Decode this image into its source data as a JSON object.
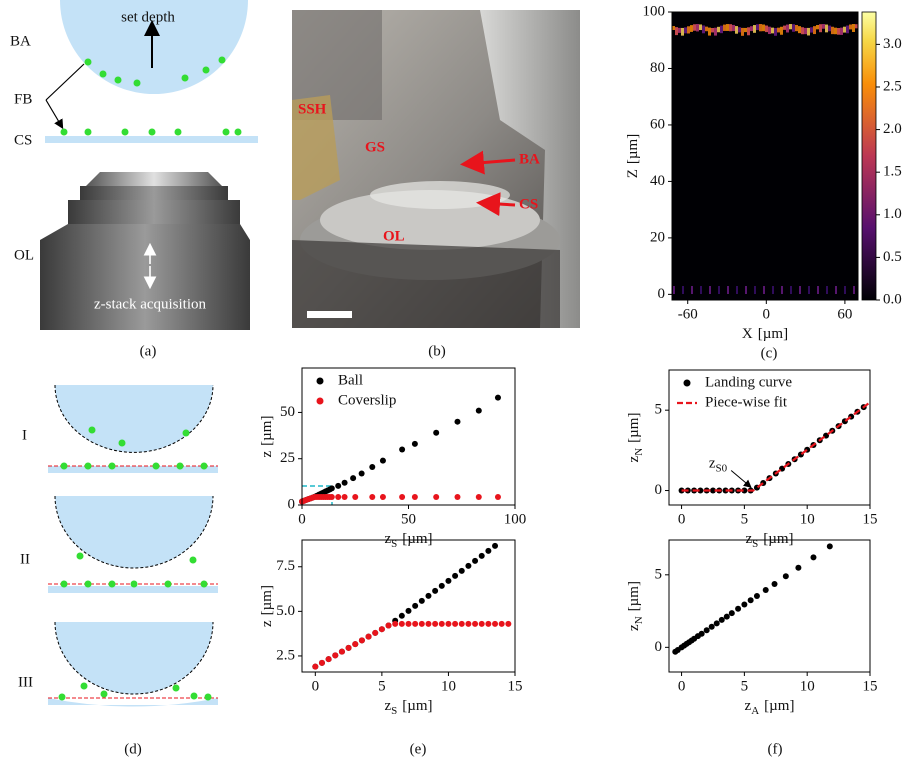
{
  "panel_labels": [
    "(a)",
    "(b)",
    "(c)",
    "(d)",
    "(e)",
    "(f)"
  ],
  "diagram_a": {
    "ba": "BA",
    "fb": "FB",
    "cs": "CS",
    "ol": "OL",
    "set_depth": "set depth",
    "z_stack": "z-stack acquisition"
  },
  "photo_b": {
    "ssh": "SSH",
    "gs": "GS",
    "ba": "BA",
    "cs": "CS",
    "ol": "OL"
  },
  "diagram_d": {
    "stages": [
      "I",
      "II",
      "III"
    ]
  },
  "chart_data": [
    {
      "type": "heatmap",
      "xlabel": {
        "text": "X",
        "unit": "[µm]"
      },
      "ylabel": {
        "text": "Z",
        "unit": "[µm]"
      },
      "xlim": [
        -72,
        70
      ],
      "ylim": [
        -2,
        100
      ],
      "xticks": [
        -60,
        0,
        60
      ],
      "yticks": [
        0,
        20,
        40,
        60,
        80,
        100
      ],
      "colorbar": {
        "clim": [
          0,
          3.38
        ],
        "ticks": [
          {
            "value": 0,
            "label": "0.0"
          },
          0.5,
          {
            "value": 1,
            "label": "1.0"
          },
          1.5,
          {
            "value": 2,
            "label": "2.0"
          },
          2.5,
          {
            "value": 3,
            "label": "3.0"
          }
        ]
      }
    },
    {
      "type": "scatter",
      "xlabel": {
        "text": "z",
        "sub": "S",
        "unit": "[µm]"
      },
      "ylabel": {
        "text": "z",
        "unit": "[µm]"
      },
      "xlim": [
        0,
        100
      ],
      "ylim": [
        0,
        74
      ],
      "xticks": [
        0,
        50,
        100
      ],
      "yticks": [
        0,
        25,
        50
      ],
      "legend": "upper left",
      "series": [
        {
          "name": "Ball",
          "color": "#000000",
          "style": "markers",
          "x": [
            0,
            1,
            2,
            3,
            4,
            5,
            6,
            7,
            8,
            9,
            10,
            11,
            12,
            13,
            14,
            17,
            20,
            24,
            28,
            33,
            38,
            47,
            53,
            63,
            73,
            83,
            92
          ],
          "values": [
            1.9,
            2.32,
            2.74,
            3.16,
            3.58,
            4.0,
            4.47,
            5.03,
            5.59,
            6.15,
            6.71,
            7.27,
            7.83,
            8.39,
            9.0,
            10.3,
            12,
            14.5,
            17,
            20.5,
            24,
            30,
            33,
            39,
            45,
            51,
            58
          ]
        },
        {
          "name": "Coverslip",
          "color": "#e8141c",
          "style": "markers",
          "x": [
            0,
            1,
            2,
            3,
            4,
            5,
            6,
            7,
            8,
            9,
            10,
            11,
            12,
            13,
            14,
            17,
            20,
            25,
            33,
            38,
            47,
            53,
            63,
            73,
            83,
            92
          ],
          "values": [
            1.9,
            2.32,
            2.74,
            3.16,
            3.58,
            4.0,
            4.3,
            4.3,
            4.3,
            4.3,
            4.3,
            4.3,
            4.3,
            4.3,
            4.3,
            4.3,
            4.3,
            4.3,
            4.3,
            4.3,
            4.3,
            4.3,
            4.3,
            4.3,
            4.3,
            4.3
          ]
        }
      ]
    },
    {
      "type": "scatter",
      "xlabel": {
        "text": "z",
        "sub": "S",
        "unit": "[µm]"
      },
      "ylabel": {
        "text": "z",
        "unit": "[µm]"
      },
      "xlim": [
        -1,
        15
      ],
      "ylim": [
        1.6,
        9.0
      ],
      "xticks": [
        0,
        5,
        10,
        15
      ],
      "yticks": [
        2.5,
        {
          "value": 5,
          "label": "5.0"
        },
        7.5
      ],
      "series": [
        {
          "name": "Ball",
          "color": "#000000",
          "style": "markers",
          "x": [
            0,
            0.5,
            1,
            1.5,
            2,
            2.5,
            3,
            3.5,
            4,
            4.5,
            5,
            5.5,
            6,
            6.5,
            7,
            7.5,
            8,
            8.5,
            9,
            9.5,
            10,
            10.5,
            11,
            11.5,
            12,
            12.5,
            13,
            13.5
          ],
          "values": [
            1.9,
            2.11,
            2.32,
            2.53,
            2.74,
            2.95,
            3.16,
            3.37,
            3.58,
            3.79,
            4.0,
            4.21,
            4.47,
            4.75,
            5.03,
            5.31,
            5.59,
            5.87,
            6.15,
            6.43,
            6.71,
            6.99,
            7.27,
            7.55,
            7.83,
            8.11,
            8.39,
            8.67
          ]
        },
        {
          "name": "Coverslip",
          "color": "#e8141c",
          "style": "markers",
          "x": [
            0,
            0.5,
            1,
            1.5,
            2,
            2.5,
            3,
            3.5,
            4,
            4.5,
            5,
            5.5,
            6,
            6.5,
            7,
            7.5,
            8,
            8.5,
            9,
            9.5,
            10,
            10.5,
            11,
            11.5,
            12,
            12.5,
            13,
            13.5,
            14,
            14.5
          ],
          "values": [
            1.9,
            2.11,
            2.32,
            2.53,
            2.74,
            2.95,
            3.16,
            3.37,
            3.58,
            3.79,
            4.0,
            4.21,
            4.3,
            4.3,
            4.3,
            4.3,
            4.3,
            4.3,
            4.3,
            4.3,
            4.3,
            4.3,
            4.3,
            4.3,
            4.3,
            4.3,
            4.3,
            4.3,
            4.3,
            4.3
          ]
        }
      ]
    },
    {
      "type": "scatter",
      "xlabel": {
        "text": "z",
        "sub": "S",
        "unit": "[µm]"
      },
      "ylabel": {
        "text": "z",
        "sub": "N",
        "unit": "[µm]"
      },
      "xlim": [
        -1,
        15
      ],
      "ylim": [
        -0.9,
        7.5
      ],
      "xticks": [
        0,
        5,
        10,
        15
      ],
      "yticks": [
        0,
        5
      ],
      "legend": "upper left",
      "annotation": {
        "text": "z",
        "sub": "S0",
        "xy": [
          5.7,
          0
        ]
      },
      "series": [
        {
          "name": "Landing curve",
          "color": "#000000",
          "style": "markers",
          "x": [
            0,
            0.5,
            1,
            1.5,
            2,
            2.5,
            3,
            3.5,
            4,
            4.5,
            5,
            5.5,
            6,
            6.5,
            7,
            7.5,
            8,
            8.5,
            9,
            9.5,
            10,
            10.5,
            11,
            11.5,
            12,
            12.5,
            13,
            13.5,
            14,
            14.5
          ],
          "values": [
            0,
            0,
            0,
            0,
            0,
            0,
            0,
            0,
            0,
            0,
            0,
            0,
            0.18,
            0.47,
            0.77,
            1.06,
            1.36,
            1.65,
            1.95,
            2.24,
            2.54,
            2.83,
            3.13,
            3.42,
            3.72,
            4.01,
            4.31,
            4.6,
            4.9,
            5.19
          ]
        },
        {
          "name": "Piece-wise fit",
          "color": "#e8141c",
          "style": "dashed-line",
          "x": [
            0,
            5.7,
            15
          ],
          "values": [
            0,
            0,
            5.49
          ]
        }
      ]
    },
    {
      "type": "scatter",
      "xlabel": {
        "text": "z",
        "sub": "A",
        "unit": "[µm]"
      },
      "ylabel": {
        "text": "z",
        "sub": "N",
        "unit": "[µm]"
      },
      "xlim": [
        -1,
        15
      ],
      "ylim": [
        -1.7,
        7.4
      ],
      "xticks": [
        0,
        5,
        10,
        15
      ],
      "yticks": [
        0,
        5
      ],
      "series": [
        {
          "name": null,
          "color": "#000000",
          "style": "markers",
          "x": [
            -0.5,
            -0.3,
            0,
            0.2,
            0.4,
            0.6,
            0.8,
            1,
            1.3,
            1.6,
            2,
            2.4,
            2.8,
            3.2,
            3.6,
            4,
            4.5,
            5,
            5.5,
            6,
            6.7,
            7.4,
            8.3,
            9.3,
            10.5,
            11.8
          ],
          "values": [
            -0.3,
            -0.18,
            0,
            0.12,
            0.24,
            0.35,
            0.47,
            0.59,
            0.77,
            0.94,
            1.18,
            1.42,
            1.65,
            1.89,
            2.12,
            2.36,
            2.66,
            2.95,
            3.25,
            3.54,
            3.95,
            4.37,
            4.9,
            5.49,
            6.2,
            6.96
          ]
        }
      ]
    }
  ]
}
